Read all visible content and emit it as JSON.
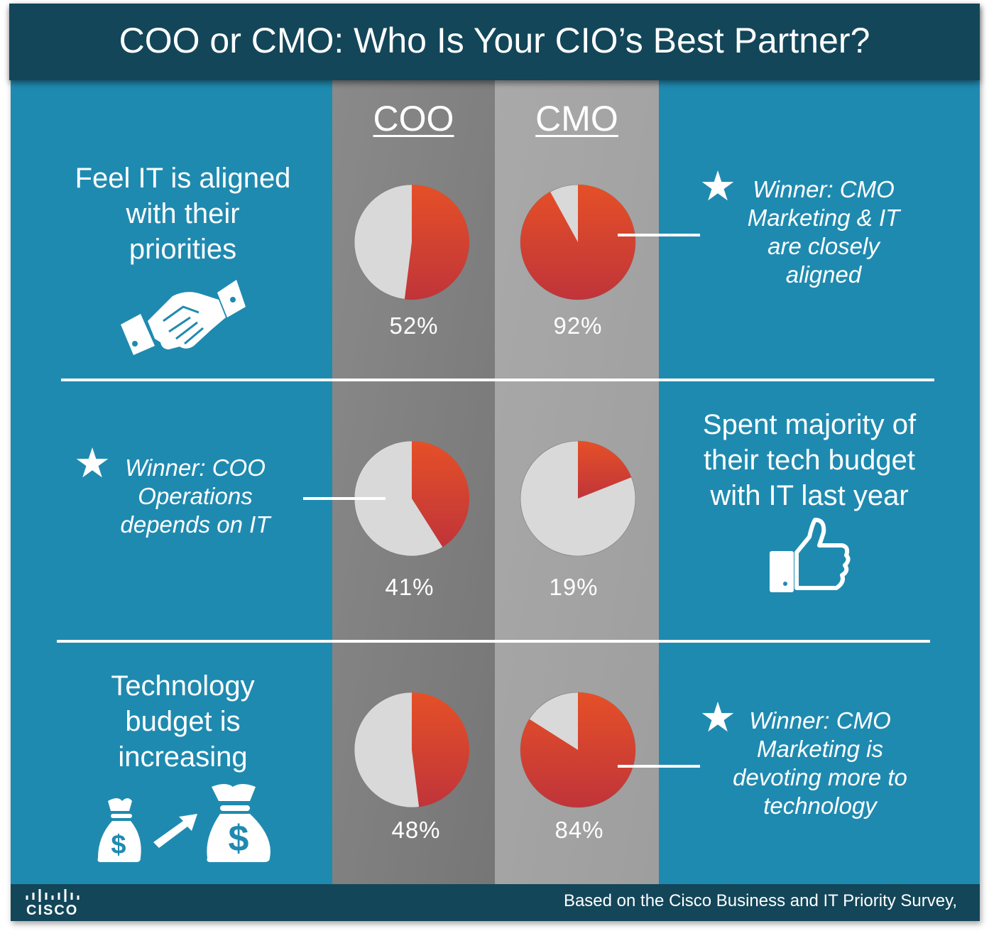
{
  "title": "COO or CMO: Who Is Your CIO’s Best Partner?",
  "columns": [
    "COO",
    "CMO"
  ],
  "rows": [
    {
      "label": "Feel IT is aligned with their priorities",
      "label_lines": [
        "Feel IT is aligned",
        "with their",
        "priorities"
      ],
      "icon": "handshake-icon",
      "winner_lines": [
        "Winner: CMO",
        "Marketing & IT",
        "are closely",
        "aligned"
      ],
      "winner": "CMO"
    },
    {
      "label": "Spent majority of their tech budget with IT last year",
      "label_lines": [
        "Spent majority of",
        "their tech budget",
        "with IT last year"
      ],
      "icon": "thumbs-up-icon",
      "winner_lines": [
        "Winner: COO",
        "Operations",
        "depends on IT"
      ],
      "winner": "COO"
    },
    {
      "label": "Technology budget is increasing",
      "label_lines": [
        "Technology",
        "budget is",
        "increasing"
      ],
      "icon": "money-bags-growth-icon",
      "winner_lines": [
        "Winner: CMO",
        "Marketing is",
        "devoting more to",
        "technology"
      ],
      "winner": "CMO"
    }
  ],
  "chart_data": [
    {
      "type": "pie",
      "title": "Feel IT is aligned with their priorities",
      "categories": [
        "COO",
        "CMO"
      ],
      "values": [
        52,
        92
      ],
      "labels": [
        "52%",
        "92%"
      ]
    },
    {
      "type": "pie",
      "title": "Spent majority of their tech budget with IT last year",
      "categories": [
        "COO",
        "CMO"
      ],
      "values": [
        41,
        19
      ],
      "labels": [
        "41%",
        "19%"
      ]
    },
    {
      "type": "pie",
      "title": "Technology budget is increasing",
      "categories": [
        "COO",
        "CMO"
      ],
      "values": [
        48,
        84
      ],
      "labels": [
        "48%",
        "84%"
      ]
    }
  ],
  "colors": {
    "background": "#1f8ab0",
    "header": "#134659",
    "coo_column": "#7d7d7d",
    "cmo_column": "#a3a3a3",
    "slice_top": "#e55027",
    "slice_bottom": "#c0343a",
    "remainder": "#d9d9d9"
  },
  "footer": {
    "note": "Based on the Cisco Business and IT Priority Survey,",
    "logo": "cisco"
  }
}
